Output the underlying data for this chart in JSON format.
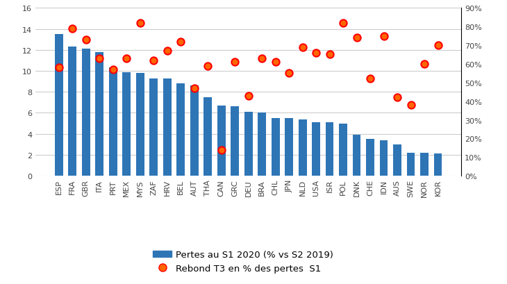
{
  "categories": [
    "ESP",
    "FRA",
    "GBR",
    "ITA",
    "PRT",
    "MEX",
    "MYS",
    "ZAF",
    "HRV",
    "BEL",
    "AUT",
    "THA",
    "CAN",
    "GRC",
    "DEU",
    "BRA",
    "CHL",
    "JPN",
    "NLD",
    "USA",
    "ISR",
    "POL",
    "DNK",
    "CHE",
    "IDN",
    "AUS",
    "SWE",
    "NOR",
    "KOR"
  ],
  "bar_values": [
    13.5,
    12.3,
    12.1,
    11.8,
    10.3,
    9.9,
    9.8,
    9.3,
    9.3,
    8.8,
    8.6,
    7.5,
    6.7,
    6.6,
    6.1,
    6.0,
    5.5,
    5.5,
    5.4,
    5.1,
    5.1,
    5.0,
    3.9,
    3.5,
    3.4,
    3.0,
    2.2,
    2.2,
    2.1
  ],
  "dot_values": [
    0.58,
    0.79,
    0.73,
    0.63,
    0.57,
    0.63,
    0.82,
    0.62,
    0.67,
    0.72,
    0.47,
    0.59,
    0.14,
    0.61,
    0.43,
    0.63,
    0.61,
    0.55,
    0.69,
    0.66,
    0.65,
    0.82,
    0.74,
    0.52,
    0.75,
    0.42,
    0.38,
    0.6,
    0.7
  ],
  "bar_color": "#2E75B6",
  "dot_facecolor": "#FF6600",
  "dot_edgecolor": "#FF0000",
  "bar_label": "Pertes au S1 2020 (% vs S2 2019)",
  "dot_label": "Rebond T3 en % des pertes  S1",
  "ylim_left": [
    0,
    16
  ],
  "ylim_right": [
    0,
    0.9
  ],
  "yticks_left": [
    0,
    2,
    4,
    6,
    8,
    10,
    12,
    14,
    16
  ],
  "yticks_right": [
    0.0,
    0.1,
    0.2,
    0.3,
    0.4,
    0.5,
    0.6,
    0.7,
    0.8,
    0.9
  ],
  "ytick_labels_right": [
    "0%",
    "10%",
    "20%",
    "30%",
    "40%",
    "50%",
    "60%",
    "70%",
    "80%",
    "90%"
  ],
  "grid_color": "#CCCCCC",
  "background_color": "#FFFFFF",
  "tick_fontsize": 8,
  "label_fontsize": 9.5
}
